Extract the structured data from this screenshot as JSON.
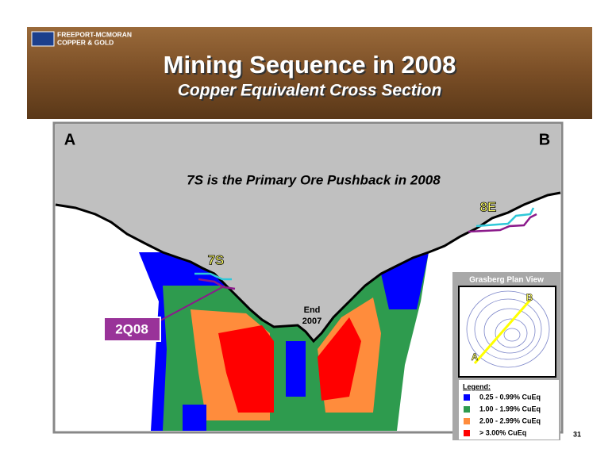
{
  "header": {
    "company_line1": "FREEPORT-MCMORAN",
    "company_line2": "COPPER & GOLD",
    "title": "Mining Sequence in 2008",
    "subtitle": "Copper Equivalent Cross Section"
  },
  "section": {
    "label_a": "A",
    "label_b": "B",
    "annotation": "7S is the Primary Ore Pushback in 2008",
    "pushback_7s": "7S",
    "pushback_8e": "8E",
    "end_label": [
      "End",
      "2007"
    ],
    "quarter_label": "2Q08"
  },
  "inset": {
    "title": "Grasberg Plan View",
    "point_a": "A",
    "point_b": "B",
    "legend_title": "Legend:",
    "legend": [
      {
        "label": "0.25 - 0.99%  CuEq",
        "color": "#0000ff"
      },
      {
        "label": "1.00 - 1.99%  CuEq",
        "color": "#2e9b4e"
      },
      {
        "label": "2.00 - 2.99%  CuEq",
        "color": "#ff8c3c"
      },
      {
        "label": "> 3.00%  CuEq",
        "color": "#ff0000"
      }
    ]
  },
  "page_number": "31"
}
